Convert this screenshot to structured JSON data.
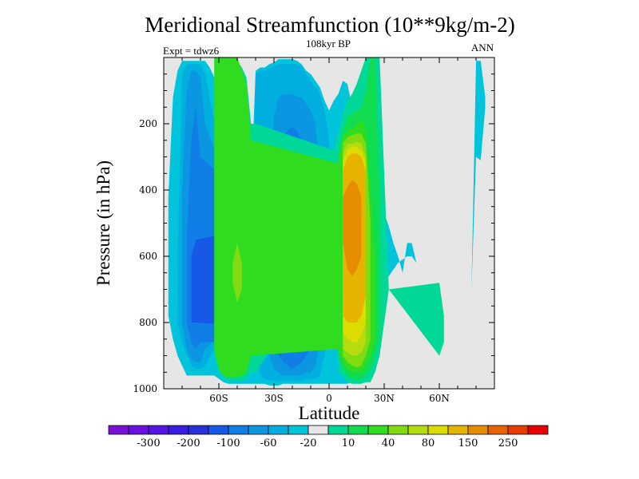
{
  "chart_data": {
    "type": "contour",
    "title": "Meridional Streamfunction (10**9kg/m-2)",
    "subtitle": "108kyr BP",
    "left_string": "Expt = tdwz6",
    "right_string": "ANN",
    "xlabel": "Latitude",
    "ylabel": "Pressure (in hPa)",
    "x_ticks": [
      "60S",
      "30S",
      "0",
      "30N",
      "60N"
    ],
    "x_tick_values": [
      -60,
      -30,
      0,
      30,
      60
    ],
    "xlim": [
      -90,
      90
    ],
    "y_ticks": [
      "200",
      "400",
      "600",
      "800",
      "1000"
    ],
    "y_tick_values": [
      200,
      400,
      600,
      800,
      1000
    ],
    "ylim": [
      0,
      1000
    ],
    "y_reversed": true,
    "background_color": "#e6e6e6",
    "colorbar": {
      "colors": [
        "#7a10d8",
        "#6710e0",
        "#5414e8",
        "#3a1ce0",
        "#2830d8",
        "#1858e6",
        "#107ee6",
        "#0a96e0",
        "#00aee0",
        "#00c4dc",
        "#e6e6e6",
        "#00d898",
        "#10dc50",
        "#30dc20",
        "#80dc10",
        "#b4dc10",
        "#dcdc00",
        "#e6b400",
        "#e68c00",
        "#e66400",
        "#e63c00",
        "#e60000"
      ],
      "labels": [
        "-300",
        "-200",
        "-100",
        "-60",
        "-20",
        "10",
        "40",
        "80",
        "150",
        "250"
      ],
      "label_after_box": [
        1,
        3,
        5,
        7,
        9,
        11,
        13,
        15,
        17,
        19
      ]
    },
    "regions": [
      {
        "level": "-10",
        "color": "#00c4dc",
        "lat": [
          -87.5,
          -85.0,
          -82.5,
          -80.0,
          -77.5,
          -75.0,
          -72.5,
          -70.0,
          -67.5,
          -65.0,
          -62.5,
          -60.0,
          -57.5,
          -55.0,
          -52.5,
          -50.0,
          -47.5,
          -45.0,
          -42.5,
          -40.0,
          -37.5,
          -35.0,
          -32.5,
          -30.0,
          -27.5,
          -25.0,
          -22.5,
          -20.0,
          -17.5,
          -15.0,
          -12.5,
          -10.0,
          -7.5,
          -5.0,
          -2.5,
          0.0,
          2.5,
          5.0,
          7.5,
          10.0,
          12.5,
          15.0,
          17.5,
          20.0,
          22.5,
          25.0,
          27.5,
          30.0,
          32.5,
          35.0,
          37.5,
          40.0,
          42.5,
          45.0,
          47.5,
          50.0,
          52.5,
          55.0,
          57.5,
          60.0,
          62.5,
          65.0,
          67.5,
          70.0,
          72.5,
          75.0,
          77.5,
          80.0,
          82.5,
          85.0
        ],
        "top": [
          420,
          120,
          40,
          10,
          10,
          10,
          10,
          10,
          10,
          30,
          60,
          110,
          180,
          260,
          320,
          360,
          380,
          390,
          400,
          40,
          30,
          30,
          20,
          15,
          5,
          5,
          5,
          5,
          10,
          20,
          40,
          50,
          70,
          90,
          130,
          160,
          130,
          110,
          70,
          80,
          150,
          200,
          260,
          300,
          340,
          380,
          420,
          470,
          510,
          560,
          600,
          650,
          560,
          560,
          620,
          680,
          950,
          950,
          950,
          950,
          950,
          950,
          950,
          950,
          1000,
          950,
          700,
          10,
          10,
          120
        ],
        "bottom": [
          780,
          850,
          900,
          930,
          960,
          960,
          960,
          960,
          960,
          960,
          960,
          970,
          980,
          985,
          985,
          985,
          985,
          985,
          985,
          985,
          985,
          985,
          990,
          990,
          990,
          985,
          985,
          985,
          985,
          985,
          985,
          985,
          985,
          985,
          985,
          985,
          985,
          985,
          985,
          985,
          980,
          960,
          930,
          860,
          790,
          730,
          700,
          680,
          660,
          640,
          620,
          610,
          600,
          600,
          620,
          680,
          950,
          950,
          950,
          950,
          950,
          950,
          950,
          950,
          1000,
          950,
          700,
          300,
          310,
          150
        ]
      },
      {
        "level": "-20",
        "color": "#00aee0",
        "lat": [
          -82.5,
          -80.0,
          -77.5,
          -75.0,
          -72.5,
          -70.0,
          -67.5,
          -45.0,
          -42.5,
          -40.0,
          -37.5,
          -35.0,
          -32.5,
          -30.0,
          -27.5,
          -25.0,
          -22.5,
          -20.0,
          -17.5,
          -15.0,
          -12.5,
          -10.0,
          -7.5,
          -5.0,
          -2.5,
          0.0
        ],
        "top": [
          600,
          50,
          20,
          20,
          20,
          20,
          50,
          700,
          720,
          50,
          40,
          40,
          30,
          25,
          20,
          20,
          20,
          20,
          20,
          30,
          50,
          70,
          90,
          110,
          160,
          250
        ],
        "bottom": [
          800,
          860,
          900,
          930,
          940,
          940,
          930,
          700,
          720,
          860,
          960,
          970,
          975,
          975,
          975,
          975,
          975,
          975,
          975,
          975,
          970,
          970,
          970,
          960,
          900,
          700
        ]
      },
      {
        "level": "-40",
        "color": "#0a96e0",
        "lat": [
          -80.0,
          -77.5,
          -75.0,
          -72.5,
          -70.0,
          -67.5,
          -35.0,
          -32.5,
          -30.0,
          -27.5,
          -25.0,
          -22.5,
          -20.0,
          -17.5,
          -15.0,
          -12.5,
          -10.0,
          -7.5,
          -5.0
        ],
        "top": [
          400,
          100,
          40,
          40,
          60,
          200,
          700,
          400,
          180,
          120,
          110,
          110,
          110,
          120,
          120,
          140,
          160,
          200,
          350
        ],
        "bottom": [
          800,
          880,
          910,
          920,
          920,
          880,
          700,
          900,
          940,
          950,
          960,
          960,
          960,
          960,
          960,
          950,
          950,
          930,
          850
        ]
      },
      {
        "level": "-60",
        "color": "#107ee6",
        "lat": [
          -77.5,
          -75.0,
          -72.5,
          -70.0,
          -30.0,
          -27.5,
          -25.0,
          -22.5,
          -20.0,
          -17.5,
          -15.0,
          -12.5,
          -10.0,
          -7.5
        ],
        "top": [
          550,
          250,
          150,
          300,
          500,
          280,
          240,
          220,
          210,
          220,
          250,
          280,
          340,
          500
        ],
        "bottom": [
          800,
          860,
          880,
          860,
          850,
          900,
          920,
          930,
          940,
          930,
          920,
          900,
          880,
          750
        ]
      },
      {
        "level": "-80",
        "color": "#1858e6",
        "lat": [
          -75.0,
          -72.5,
          -25.0,
          -22.5,
          -20.0,
          -17.5,
          -15.0,
          -12.5,
          -10.0
        ],
        "top": [
          600,
          550,
          500,
          440,
          410,
          420,
          450,
          520,
          620
        ],
        "bottom": [
          800,
          800,
          820,
          860,
          880,
          880,
          860,
          840,
          720
        ]
      },
      {
        "level": "-100",
        "color": "#2830d8",
        "lat": [
          -17.5,
          -15.0,
          -12.5
        ],
        "top": [
          700,
          660,
          700
        ],
        "bottom": [
          840,
          860,
          820
        ]
      },
      {
        "level": "10",
        "color": "#00d898",
        "lat": [
          -62.5,
          -60.0,
          -57.5,
          -55.0,
          -52.5,
          -50.0,
          -47.5,
          -45.0,
          -42.5,
          -40.0,
          2.5,
          5.0,
          7.5,
          10.0,
          12.5,
          15.0,
          17.5,
          20.0,
          22.5,
          25.0,
          27.5,
          32.5,
          60.0,
          62.5
        ],
        "top": [
          0,
          0,
          0,
          0,
          0,
          10,
          30,
          60,
          200,
          200,
          280,
          230,
          170,
          130,
          110,
          80,
          40,
          0,
          0,
          0,
          0,
          700,
          680,
          780
        ],
        "bottom": [
          900,
          950,
          970,
          975,
          975,
          975,
          975,
          970,
          950,
          950,
          600,
          950,
          960,
          980,
          985,
          985,
          985,
          980,
          980,
          950,
          900,
          700,
          900,
          860
        ]
      },
      {
        "level": "20",
        "color": "#10dc50",
        "lat": [
          5.0,
          7.5,
          10.0,
          12.5,
          15.0,
          17.5,
          20.0,
          22.5,
          25.0,
          27.5
        ],
        "top": [
          300,
          220,
          180,
          170,
          160,
          150,
          100,
          0,
          0,
          400
        ],
        "bottom": [
          900,
          940,
          960,
          970,
          975,
          970,
          960,
          940,
          900,
          850
        ]
      },
      {
        "level": "30",
        "color": "#30dc20",
        "lat": [
          -62.5,
          -60.0,
          -57.5,
          -55.0,
          -52.5,
          -50.0,
          -47.5,
          -45.0,
          -42.5,
          5.0,
          7.5,
          10.0,
          12.5,
          15.0,
          17.5,
          20.0,
          22.5,
          25.0
        ],
        "top": [
          0,
          0,
          0,
          0,
          0,
          0,
          40,
          80,
          250,
          320,
          240,
          220,
          215,
          200,
          190,
          210,
          400,
          600
        ],
        "bottom": [
          880,
          940,
          960,
          965,
          965,
          965,
          960,
          950,
          900,
          880,
          920,
          940,
          950,
          950,
          950,
          930,
          900,
          850
        ]
      },
      {
        "level": "40",
        "color": "#80dc10",
        "lat": [
          7.5,
          10.0,
          12.5,
          15.0,
          17.5,
          20.0,
          22.5
        ],
        "top": [
          260,
          240,
          235,
          230,
          230,
          260,
          500
        ],
        "bottom": [
          900,
          920,
          930,
          935,
          930,
          900,
          850
        ]
      },
      {
        "level": "50",
        "color": "#b4dc10",
        "lat": [
          7.5,
          10.0,
          12.5,
          15.0,
          17.5,
          20.0
        ],
        "top": [
          290,
          260,
          260,
          255,
          260,
          300
        ],
        "bottom": [
          880,
          890,
          900,
          900,
          890,
          860
        ]
      },
      {
        "level": "60",
        "color": "#dcdc00",
        "lat": [
          7.5,
          10.0,
          12.5,
          15.0,
          17.5,
          20.0
        ],
        "top": [
          310,
          280,
          270,
          270,
          280,
          320
        ],
        "bottom": [
          830,
          850,
          860,
          860,
          840,
          800
        ]
      },
      {
        "level": "80",
        "color": "#e6b400",
        "lat": [
          7.5,
          10.0,
          12.5,
          15.0,
          17.5,
          20.0
        ],
        "top": [
          340,
          300,
          290,
          290,
          300,
          340
        ],
        "bottom": [
          780,
          800,
          800,
          800,
          780,
          720
        ]
      },
      {
        "level": "100",
        "color": "#e68c00",
        "lat": [
          7.5,
          10.0,
          12.5,
          15.0,
          17.5
        ],
        "top": [
          420,
          390,
          370,
          380,
          420
        ],
        "bottom": [
          560,
          640,
          660,
          640,
          600
        ]
      },
      {
        "level": "40",
        "color": "#80dc10",
        "lat": [
          -52.5,
          -50.0,
          -47.5
        ],
        "top": [
          620,
          560,
          620
        ],
        "bottom": [
          680,
          740,
          700
        ]
      }
    ]
  }
}
